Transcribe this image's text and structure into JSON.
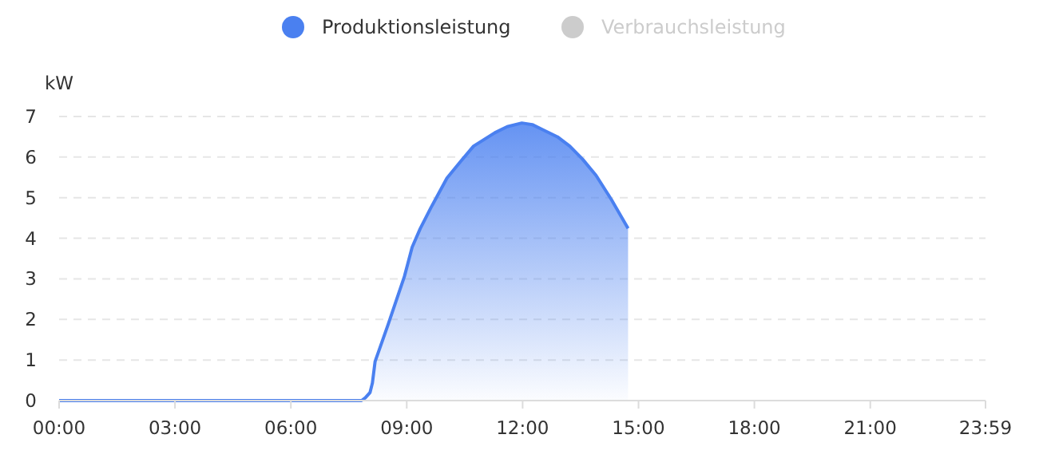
{
  "chart_data": {
    "type": "area",
    "ylabel": "kW",
    "xlim": [
      0,
      23.9833
    ],
    "xticks": [
      {
        "value": 0,
        "label": "00:00"
      },
      {
        "value": 3,
        "label": "03:00"
      },
      {
        "value": 6,
        "label": "06:00"
      },
      {
        "value": 9,
        "label": "09:00"
      },
      {
        "value": 12,
        "label": "12:00"
      },
      {
        "value": 15,
        "label": "15:00"
      },
      {
        "value": 18,
        "label": "18:00"
      },
      {
        "value": 21,
        "label": "21:00"
      },
      {
        "value": 23.9833,
        "label": "23:59"
      }
    ],
    "ylim": [
      0,
      7
    ],
    "yticks": [
      0,
      1,
      2,
      3,
      4,
      5,
      6,
      7
    ],
    "grid": "y",
    "legend": "top",
    "marker": "none",
    "series": [
      {
        "name": "Produktionsleistung",
        "color": "#4a80f0",
        "x": [
          0,
          3,
          6,
          7.5,
          7.83,
          7.93,
          8.05,
          8.11,
          8.18,
          8.52,
          8.94,
          9.14,
          9.35,
          9.63,
          10.04,
          10.4,
          10.73,
          11.28,
          11.6,
          11.98,
          12.25,
          12.53,
          12.9,
          13.22,
          13.55,
          13.9,
          14.3,
          14.73
        ],
        "values": [
          0,
          0,
          0,
          0,
          0,
          0.07,
          0.2,
          0.43,
          0.96,
          1.88,
          3.06,
          3.78,
          4.24,
          4.76,
          5.48,
          5.9,
          6.27,
          6.6,
          6.75,
          6.84,
          6.8,
          6.67,
          6.5,
          6.27,
          5.95,
          5.55,
          4.95,
          4.24
        ]
      },
      {
        "name": "Verbrauchsleistung",
        "color": "#cccccc"
      }
    ]
  }
}
